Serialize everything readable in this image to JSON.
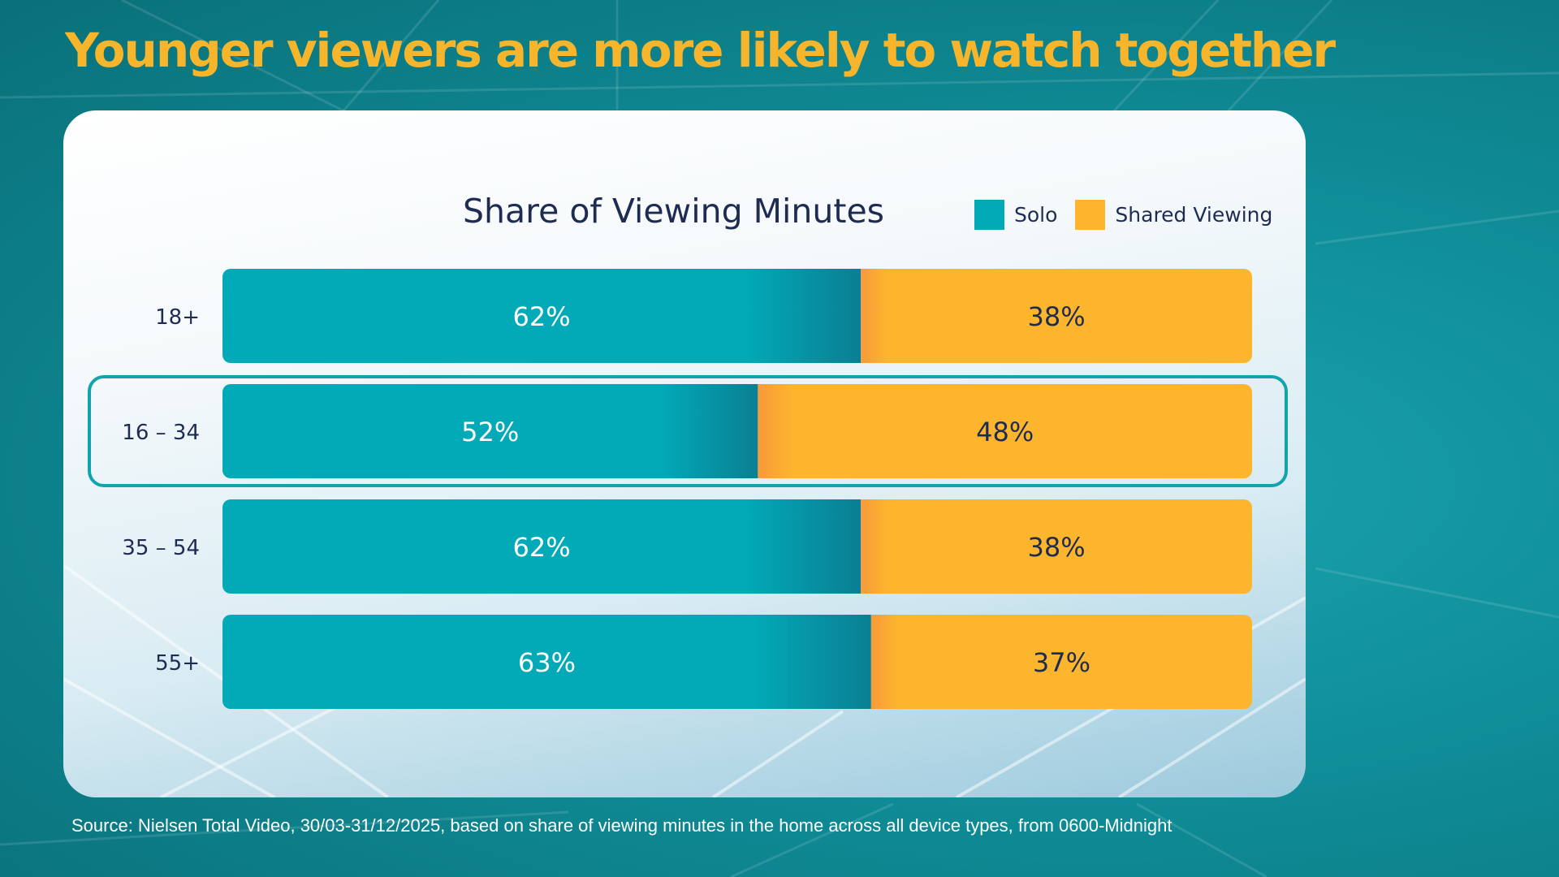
{
  "headline": "Younger viewers are more likely to watch together",
  "source": "Source: Nielsen Total Video, 30/03-31/12/2025, based on share of viewing minutes in the home across all device types, from 0600-Midnight",
  "colors": {
    "solo": "#02a9b7",
    "shared": "#fdb52e",
    "title": "#f7b52b",
    "text_dark": "#1f2c52",
    "highlight": "#13a3ad"
  },
  "chart_data": {
    "type": "bar",
    "orientation": "horizontal",
    "stacked": true,
    "title": "Share of Viewing Minutes",
    "categories": [
      "18+",
      "16 – 34",
      "35 – 54",
      "55+"
    ],
    "series": [
      {
        "name": "Solo",
        "values": [
          62,
          52,
          62,
          63
        ],
        "labels": [
          "62%",
          "52%",
          "62%",
          "63%"
        ]
      },
      {
        "name": "Shared Viewing",
        "values": [
          38,
          48,
          38,
          37
        ],
        "labels": [
          "38%",
          "48%",
          "38%",
          "37%"
        ]
      }
    ],
    "xlim": [
      0,
      100
    ],
    "highlighted_category": "16 – 34",
    "legend_position": "top-right",
    "grid": false
  }
}
